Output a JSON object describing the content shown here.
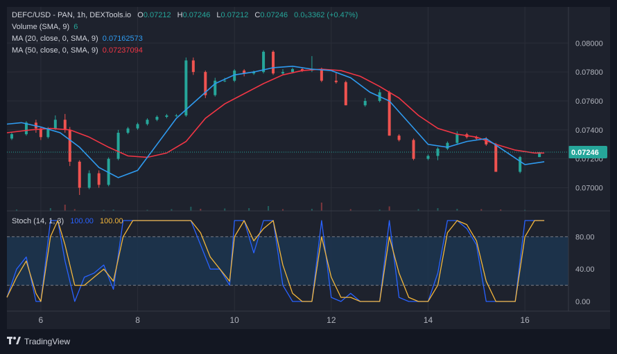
{
  "header": {
    "symbol_line": "DEFC/USD - PAN, 1h, DEXTools.io",
    "open_key": "O",
    "open": "0.07212",
    "high_key": "H",
    "high": "0.07246",
    "low_key": "L",
    "low": "0.07212",
    "close_key": "C",
    "close": "0.07246",
    "change": "0.0₅3362 (+0.47%)",
    "volume_label": "Volume (SMA, 9)",
    "volume_value": "6",
    "ma20_label": "MA (20, close, 0, SMA, 9)",
    "ma20_value": "0.07162573",
    "ma50_label": "MA (50, close, 0, SMA, 9)",
    "ma50_value": "0.07237094"
  },
  "stoch_header": {
    "label": "Stoch (14, 1, 3)",
    "k_value": "100.00",
    "d_value": "100.00"
  },
  "footer": {
    "brand": "TradingView"
  },
  "colors": {
    "background": "#1e222d",
    "up": "#26a69a",
    "down": "#ef5350",
    "ma20": "#2f9bf0",
    "ma50": "#f23645",
    "stoch_k": "#2962ff",
    "stoch_d": "#f5b73b",
    "stoch_band": "#1c3550"
  },
  "chart_data": [
    {
      "type": "candlestick",
      "price_axis_ticks": [
        "0.08000",
        "0.07800",
        "0.07600",
        "0.07400",
        "0.07200",
        "0.07000"
      ],
      "last_price_label": "0.07246",
      "ylim": [
        0.0684,
        0.0825
      ],
      "x_tick_labels": [
        "6",
        "8",
        "10",
        "12",
        "14",
        "16"
      ],
      "x_tick_values": [
        6,
        8,
        10,
        12,
        14,
        16
      ],
      "xlim": [
        5.3,
        16.9
      ],
      "candles": [
        {
          "t": 5.4,
          "o": 0.0734,
          "h": 0.0738,
          "l": 0.0733,
          "c": 0.0737
        },
        {
          "t": 5.7,
          "o": 0.0737,
          "h": 0.0746,
          "l": 0.0736,
          "c": 0.0745
        },
        {
          "t": 5.9,
          "o": 0.0745,
          "h": 0.0747,
          "l": 0.0738,
          "c": 0.0741
        },
        {
          "t": 6.0,
          "o": 0.0741,
          "h": 0.0742,
          "l": 0.0733,
          "c": 0.0735
        },
        {
          "t": 6.15,
          "o": 0.0735,
          "h": 0.0742,
          "l": 0.0734,
          "c": 0.0741
        },
        {
          "t": 6.3,
          "o": 0.0741,
          "h": 0.075,
          "l": 0.074,
          "c": 0.0747
        },
        {
          "t": 6.5,
          "o": 0.0747,
          "h": 0.0751,
          "l": 0.0738,
          "c": 0.074
        },
        {
          "t": 6.6,
          "o": 0.074,
          "h": 0.0742,
          "l": 0.0715,
          "c": 0.0718
        },
        {
          "t": 6.8,
          "o": 0.0718,
          "h": 0.0719,
          "l": 0.0695,
          "c": 0.07
        },
        {
          "t": 7.0,
          "o": 0.07,
          "h": 0.0712,
          "l": 0.0699,
          "c": 0.071
        },
        {
          "t": 7.2,
          "o": 0.071,
          "h": 0.0712,
          "l": 0.07,
          "c": 0.0702
        },
        {
          "t": 7.4,
          "o": 0.0702,
          "h": 0.0721,
          "l": 0.0701,
          "c": 0.072
        },
        {
          "t": 7.6,
          "o": 0.072,
          "h": 0.074,
          "l": 0.0719,
          "c": 0.0738
        },
        {
          "t": 7.8,
          "o": 0.0738,
          "h": 0.0742,
          "l": 0.0737,
          "c": 0.0741
        },
        {
          "t": 8.0,
          "o": 0.0741,
          "h": 0.0745,
          "l": 0.074,
          "c": 0.0744
        },
        {
          "t": 8.2,
          "o": 0.0744,
          "h": 0.0748,
          "l": 0.0743,
          "c": 0.0747
        },
        {
          "t": 8.4,
          "o": 0.0747,
          "h": 0.075,
          "l": 0.0746,
          "c": 0.0749
        },
        {
          "t": 8.6,
          "o": 0.0749,
          "h": 0.0751,
          "l": 0.0748,
          "c": 0.075
        },
        {
          "t": 8.8,
          "o": 0.075,
          "h": 0.0751,
          "l": 0.0749,
          "c": 0.075
        },
        {
          "t": 9.0,
          "o": 0.075,
          "h": 0.079,
          "l": 0.0749,
          "c": 0.0788
        },
        {
          "t": 9.15,
          "o": 0.0788,
          "h": 0.079,
          "l": 0.0778,
          "c": 0.078
        },
        {
          "t": 9.4,
          "o": 0.078,
          "h": 0.0781,
          "l": 0.0762,
          "c": 0.0764
        },
        {
          "t": 9.6,
          "o": 0.0764,
          "h": 0.0776,
          "l": 0.0763,
          "c": 0.0774
        },
        {
          "t": 9.8,
          "o": 0.0774,
          "h": 0.0776,
          "l": 0.0773,
          "c": 0.0774
        },
        {
          "t": 10.0,
          "o": 0.0774,
          "h": 0.0782,
          "l": 0.0773,
          "c": 0.0781
        },
        {
          "t": 10.2,
          "o": 0.0781,
          "h": 0.0782,
          "l": 0.0777,
          "c": 0.0779
        },
        {
          "t": 10.4,
          "o": 0.0779,
          "h": 0.0781,
          "l": 0.0778,
          "c": 0.078
        },
        {
          "t": 10.6,
          "o": 0.078,
          "h": 0.0795,
          "l": 0.0779,
          "c": 0.0794
        },
        {
          "t": 10.8,
          "o": 0.0794,
          "h": 0.0795,
          "l": 0.0778,
          "c": 0.0779
        },
        {
          "t": 11.0,
          "o": 0.0779,
          "h": 0.0782,
          "l": 0.0778,
          "c": 0.078
        },
        {
          "t": 11.2,
          "o": 0.078,
          "h": 0.0783,
          "l": 0.0779,
          "c": 0.0782
        },
        {
          "t": 11.4,
          "o": 0.0782,
          "h": 0.0783,
          "l": 0.078,
          "c": 0.0781
        },
        {
          "t": 11.6,
          "o": 0.0781,
          "h": 0.0791,
          "l": 0.078,
          "c": 0.0782
        },
        {
          "t": 11.8,
          "o": 0.0782,
          "h": 0.0783,
          "l": 0.0773,
          "c": 0.0774
        },
        {
          "t": 12.1,
          "o": 0.0774,
          "h": 0.078,
          "l": 0.0772,
          "c": 0.0773
        },
        {
          "t": 12.3,
          "o": 0.0773,
          "h": 0.0774,
          "l": 0.0757,
          "c": 0.0757
        },
        {
          "t": 12.7,
          "o": 0.0757,
          "h": 0.0762,
          "l": 0.0756,
          "c": 0.076
        },
        {
          "t": 13.0,
          "o": 0.076,
          "h": 0.0768,
          "l": 0.0759,
          "c": 0.0766
        },
        {
          "t": 13.2,
          "o": 0.0766,
          "h": 0.0767,
          "l": 0.0736,
          "c": 0.0736
        },
        {
          "t": 13.4,
          "o": 0.0736,
          "h": 0.0737,
          "l": 0.0732,
          "c": 0.0733
        },
        {
          "t": 13.7,
          "o": 0.0733,
          "h": 0.0734,
          "l": 0.0719,
          "c": 0.072
        },
        {
          "t": 14.0,
          "o": 0.072,
          "h": 0.0723,
          "l": 0.0719,
          "c": 0.0722
        },
        {
          "t": 14.2,
          "o": 0.0722,
          "h": 0.0728,
          "l": 0.0719,
          "c": 0.0727
        },
        {
          "t": 14.4,
          "o": 0.0727,
          "h": 0.0732,
          "l": 0.0726,
          "c": 0.0731
        },
        {
          "t": 14.6,
          "o": 0.0731,
          "h": 0.0739,
          "l": 0.073,
          "c": 0.0737
        },
        {
          "t": 14.8,
          "o": 0.0737,
          "h": 0.0738,
          "l": 0.0734,
          "c": 0.0735
        },
        {
          "t": 15.0,
          "o": 0.0735,
          "h": 0.0736,
          "l": 0.0733,
          "c": 0.0734
        },
        {
          "t": 15.2,
          "o": 0.0734,
          "h": 0.0735,
          "l": 0.0729,
          "c": 0.073
        },
        {
          "t": 15.4,
          "o": 0.073,
          "h": 0.0731,
          "l": 0.0711,
          "c": 0.0711
        },
        {
          "t": 15.9,
          "o": 0.0711,
          "h": 0.0722,
          "l": 0.071,
          "c": 0.07212
        },
        {
          "t": 16.3,
          "o": 0.07212,
          "h": 0.07246,
          "l": 0.07212,
          "c": 0.07246
        }
      ],
      "ma20": {
        "x": [
          5.3,
          5.6,
          6.0,
          6.4,
          6.8,
          7.2,
          7.6,
          8.0,
          8.4,
          8.8,
          9.2,
          9.6,
          10.0,
          10.4,
          10.8,
          11.2,
          11.6,
          12.0,
          12.4,
          12.8,
          13.2,
          13.6,
          14.0,
          14.4,
          14.8,
          15.2,
          15.6,
          16.0,
          16.4
        ],
        "y": [
          0.0744,
          0.0745,
          0.0742,
          0.0738,
          0.0728,
          0.0714,
          0.0707,
          0.0712,
          0.073,
          0.0748,
          0.076,
          0.0772,
          0.0778,
          0.078,
          0.0783,
          0.0784,
          0.0782,
          0.0781,
          0.0776,
          0.0766,
          0.076,
          0.0745,
          0.073,
          0.0728,
          0.0732,
          0.0734,
          0.0725,
          0.0716,
          0.0718
        ]
      },
      "ma50": {
        "x": [
          5.3,
          5.8,
          6.2,
          6.6,
          7.0,
          7.4,
          7.8,
          8.2,
          8.6,
          9.0,
          9.4,
          9.8,
          10.2,
          10.6,
          11.0,
          11.4,
          11.8,
          12.2,
          12.6,
          13.0,
          13.4,
          13.8,
          14.2,
          14.6,
          15.0,
          15.4,
          15.8,
          16.2,
          16.4
        ],
        "y": [
          0.0738,
          0.074,
          0.0741,
          0.074,
          0.0735,
          0.0728,
          0.0722,
          0.0721,
          0.0724,
          0.0732,
          0.0748,
          0.0758,
          0.0765,
          0.0772,
          0.0778,
          0.0781,
          0.0782,
          0.0781,
          0.0777,
          0.077,
          0.0762,
          0.075,
          0.0741,
          0.0737,
          0.0735,
          0.073,
          0.0726,
          0.0724,
          0.0724
        ]
      },
      "volume_ylim": [
        0,
        100
      ],
      "volume_bars": [
        {
          "t": 5.5,
          "v": 4,
          "c": "up"
        },
        {
          "t": 6.2,
          "v": 8,
          "c": "up"
        },
        {
          "t": 6.5,
          "v": 18,
          "c": "down"
        },
        {
          "t": 6.7,
          "v": 5,
          "c": "down"
        },
        {
          "t": 7.3,
          "v": 3,
          "c": "up"
        },
        {
          "t": 7.5,
          "v": 4,
          "c": "up"
        },
        {
          "t": 8.2,
          "v": 3,
          "c": "up"
        },
        {
          "t": 8.7,
          "v": 5,
          "c": "up"
        },
        {
          "t": 9.1,
          "v": 12,
          "c": "up"
        },
        {
          "t": 9.3,
          "v": 6,
          "c": "down"
        },
        {
          "t": 9.8,
          "v": 7,
          "c": "up"
        },
        {
          "t": 10.3,
          "v": 8,
          "c": "up"
        },
        {
          "t": 10.7,
          "v": 14,
          "c": "up"
        },
        {
          "t": 11.0,
          "v": 5,
          "c": "down"
        },
        {
          "t": 11.6,
          "v": 6,
          "c": "up"
        },
        {
          "t": 11.8,
          "v": 24,
          "c": "down"
        },
        {
          "t": 12.4,
          "v": 5,
          "c": "down"
        },
        {
          "t": 13.0,
          "v": 4,
          "c": "up"
        },
        {
          "t": 13.2,
          "v": 13,
          "c": "down"
        },
        {
          "t": 13.8,
          "v": 5,
          "c": "up"
        },
        {
          "t": 14.2,
          "v": 8,
          "c": "up"
        },
        {
          "t": 14.6,
          "v": 6,
          "c": "up"
        },
        {
          "t": 15.1,
          "v": 5,
          "c": "down"
        },
        {
          "t": 15.5,
          "v": 4,
          "c": "down"
        },
        {
          "t": 16.0,
          "v": 3,
          "c": "up"
        }
      ]
    },
    {
      "type": "line",
      "title": "Stoch (14, 1, 3)",
      "y_tick_labels": [
        "80.00",
        "40.00",
        "0.00"
      ],
      "y_tick_values": [
        80,
        40,
        0
      ],
      "ylim": [
        -12,
        112
      ],
      "band": [
        20,
        80
      ],
      "series": [
        {
          "name": "K",
          "color": "#2962ff",
          "x": [
            5.3,
            5.5,
            5.7,
            5.9,
            6.0,
            6.2,
            6.35,
            6.5,
            6.7,
            6.9,
            7.1,
            7.3,
            7.5,
            7.7,
            7.9,
            8.1,
            8.3,
            8.5,
            8.7,
            8.9,
            9.1,
            9.3,
            9.5,
            9.7,
            9.9,
            10.0,
            10.2,
            10.4,
            10.6,
            10.8,
            11.0,
            11.2,
            11.4,
            11.6,
            11.8,
            12.0,
            12.2,
            12.4,
            12.6,
            12.8,
            13.0,
            13.2,
            13.4,
            13.6,
            13.8,
            14.0,
            14.2,
            14.4,
            14.6,
            14.8,
            15.0,
            15.2,
            15.4,
            15.6,
            15.8,
            16.0,
            16.2,
            16.4
          ],
          "y": [
            5,
            40,
            55,
            0,
            0,
            100,
            100,
            50,
            0,
            30,
            35,
            45,
            15,
            100,
            100,
            100,
            100,
            100,
            100,
            100,
            100,
            70,
            40,
            40,
            20,
            100,
            100,
            60,
            100,
            100,
            20,
            0,
            0,
            0,
            100,
            5,
            0,
            10,
            0,
            0,
            0,
            100,
            5,
            0,
            0,
            0,
            35,
            100,
            100,
            90,
            70,
            0,
            0,
            0,
            0,
            100,
            100,
            100
          ]
        },
        {
          "name": "D",
          "color": "#f5b73b",
          "x": [
            5.3,
            5.5,
            5.7,
            5.9,
            6.0,
            6.2,
            6.35,
            6.5,
            6.7,
            6.9,
            7.1,
            7.3,
            7.5,
            7.7,
            7.9,
            8.1,
            8.3,
            8.5,
            8.7,
            8.9,
            9.1,
            9.3,
            9.5,
            9.7,
            9.9,
            10.0,
            10.2,
            10.4,
            10.6,
            10.8,
            11.0,
            11.2,
            11.4,
            11.6,
            11.8,
            12.0,
            12.2,
            12.4,
            12.6,
            12.8,
            13.0,
            13.2,
            13.4,
            13.6,
            13.8,
            14.0,
            14.2,
            14.4,
            14.6,
            14.8,
            15.0,
            15.2,
            15.4,
            15.6,
            15.8,
            16.0,
            16.2,
            16.4
          ],
          "y": [
            5,
            30,
            50,
            10,
            0,
            80,
            100,
            70,
            20,
            20,
            30,
            40,
            25,
            80,
            100,
            100,
            100,
            100,
            100,
            100,
            100,
            85,
            55,
            40,
            25,
            80,
            100,
            75,
            90,
            100,
            45,
            10,
            0,
            0,
            80,
            30,
            5,
            5,
            0,
            0,
            0,
            80,
            35,
            5,
            0,
            0,
            20,
            85,
            100,
            95,
            75,
            25,
            0,
            0,
            0,
            80,
            100,
            100
          ]
        }
      ]
    }
  ]
}
